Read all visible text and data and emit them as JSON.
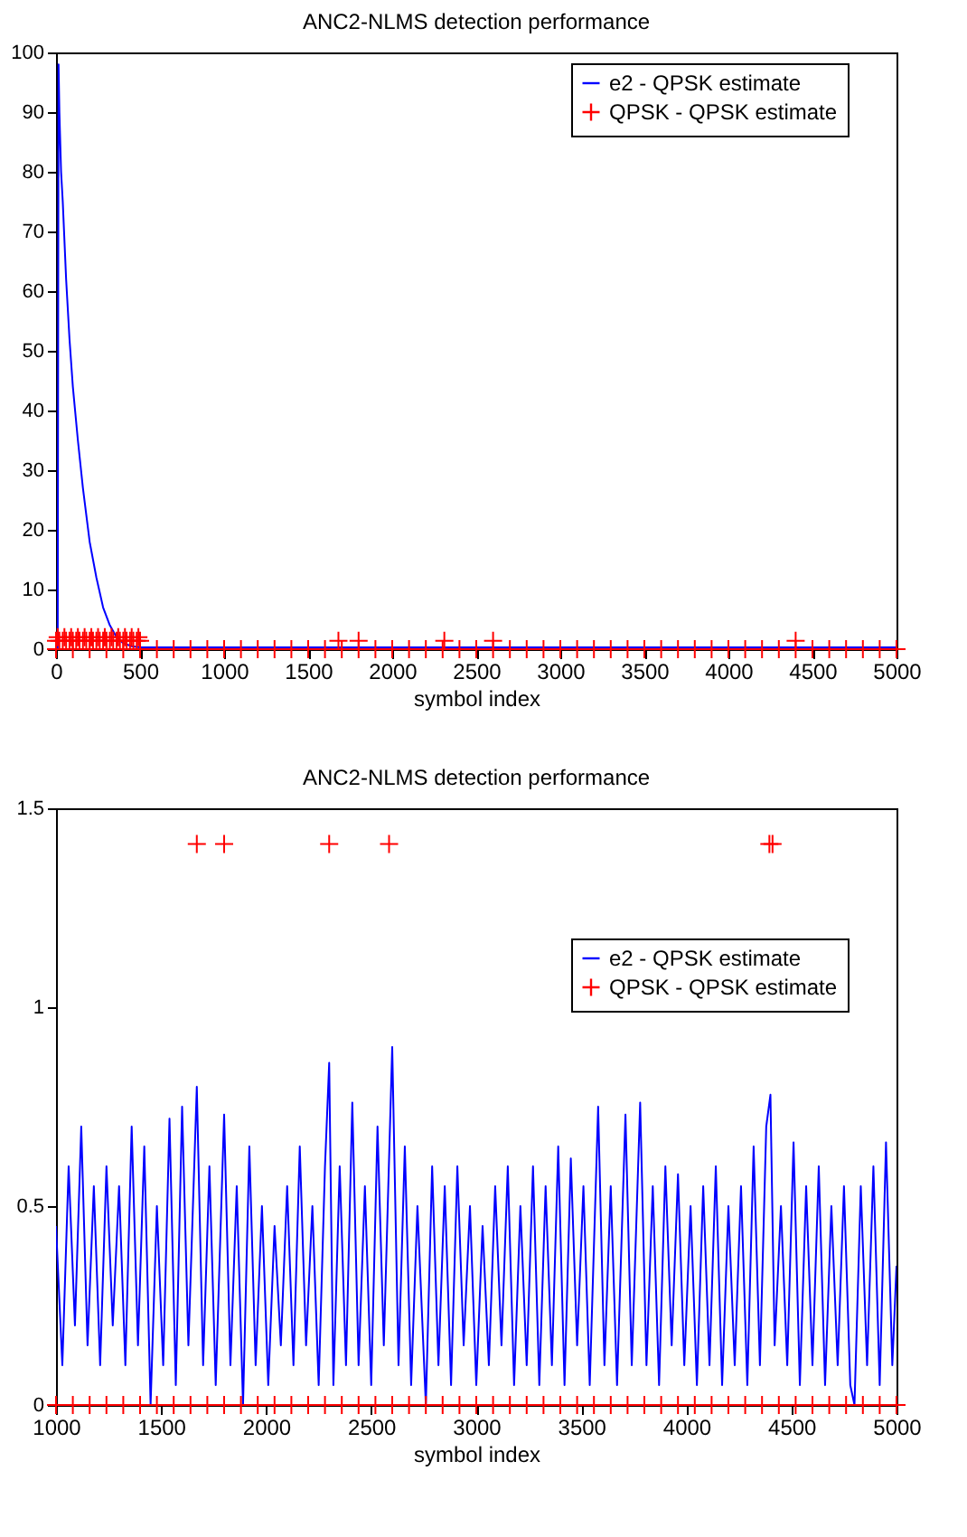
{
  "chart_data": [
    {
      "type": "line",
      "title": "ANC2-NLMS detection performance",
      "xlabel": "symbol index",
      "xlim": [
        0,
        5000
      ],
      "xticks": [
        0,
        500,
        1000,
        1500,
        2000,
        2500,
        3000,
        3500,
        4000,
        4500,
        5000
      ],
      "ylim": [
        0,
        100
      ],
      "yticks": [
        0,
        10,
        20,
        30,
        40,
        50,
        60,
        70,
        80,
        90,
        100
      ],
      "legend": "top right",
      "series": [
        {
          "name": "e2 - QPSK estimate",
          "type": "line",
          "color": "#0000ff",
          "x": [
            0,
            10,
            15,
            20,
            30,
            40,
            60,
            80,
            100,
            130,
            160,
            200,
            240,
            280,
            320,
            360,
            400,
            450,
            500,
            1000,
            5000
          ],
          "values": [
            0,
            0,
            98,
            90,
            80,
            75,
            62,
            52,
            44,
            35,
            27,
            18,
            12,
            7,
            4,
            2,
            1,
            0.5,
            0.3,
            0.3,
            0.3
          ]
        },
        {
          "name": "QPSK - QPSK estimate",
          "type": "scatter",
          "marker": "cross",
          "color": "#ff0000",
          "x": [
            0,
            20,
            40,
            60,
            80,
            100,
            120,
            140,
            160,
            180,
            200,
            220,
            240,
            260,
            280,
            300,
            320,
            340,
            360,
            380,
            400,
            420,
            440,
            460,
            480,
            500,
            10,
            50,
            90,
            130,
            170,
            210,
            250,
            290,
            330,
            370,
            410,
            450,
            490,
            1680,
            1800,
            2310,
            2600,
            4400,
            0,
            100,
            200,
            300,
            400,
            500,
            600,
            700,
            800,
            900,
            1000,
            1100,
            1200,
            1300,
            1400,
            1500,
            1600,
            1700,
            1800,
            1900,
            2000,
            2100,
            2200,
            2300,
            2400,
            2500,
            2600,
            2700,
            2800,
            2900,
            3000,
            3100,
            3200,
            3300,
            3400,
            3500,
            3600,
            3700,
            3800,
            3900,
            4000,
            4100,
            4200,
            4300,
            4400,
            4500,
            4600,
            4700,
            4800,
            4900,
            5000
          ],
          "values": [
            1.4,
            1.4,
            1.4,
            1.4,
            1.4,
            1.4,
            1.4,
            1.4,
            1.4,
            1.4,
            1.4,
            1.4,
            1.4,
            1.4,
            1.4,
            1.4,
            1.4,
            1.4,
            1.4,
            1.4,
            1.4,
            1.4,
            1.4,
            1.4,
            1.4,
            1.4,
            2,
            2,
            2,
            2,
            2,
            2,
            2,
            2,
            2,
            2,
            2,
            2,
            2,
            1.4,
            1.4,
            1.4,
            1.4,
            1.4,
            0,
            0,
            0,
            0,
            0,
            0,
            0,
            0,
            0,
            0,
            0,
            0,
            0,
            0,
            0,
            0,
            0,
            0,
            0,
            0,
            0,
            0,
            0,
            0,
            0,
            0,
            0,
            0,
            0,
            0,
            0,
            0,
            0,
            0,
            0,
            0,
            0,
            0,
            0,
            0,
            0,
            0,
            0,
            0,
            0,
            0,
            0,
            0,
            0,
            0,
            0
          ]
        }
      ]
    },
    {
      "type": "line",
      "title": "ANC2-NLMS detection performance",
      "xlabel": "symbol index",
      "xlim": [
        1000,
        5000
      ],
      "xticks": [
        1000,
        1500,
        2000,
        2500,
        3000,
        3500,
        4000,
        4500,
        5000
      ],
      "ylim": [
        0,
        1.5
      ],
      "yticks": [
        0,
        0.5,
        1,
        1.5
      ],
      "legend": "top right",
      "series": [
        {
          "name": "e2 - QPSK estimate",
          "type": "line",
          "color": "#0000ff",
          "x": [
            1000,
            1030,
            1060,
            1090,
            1120,
            1150,
            1180,
            1210,
            1240,
            1270,
            1300,
            1330,
            1360,
            1390,
            1420,
            1450,
            1480,
            1510,
            1540,
            1570,
            1600,
            1630,
            1670,
            1700,
            1730,
            1760,
            1800,
            1830,
            1860,
            1890,
            1920,
            1950,
            1980,
            2010,
            2040,
            2070,
            2100,
            2130,
            2160,
            2190,
            2220,
            2250,
            2280,
            2300,
            2320,
            2350,
            2380,
            2410,
            2440,
            2470,
            2500,
            2530,
            2560,
            2600,
            2630,
            2660,
            2690,
            2720,
            2760,
            2790,
            2820,
            2850,
            2880,
            2910,
            2940,
            2970,
            3000,
            3030,
            3060,
            3090,
            3120,
            3150,
            3180,
            3210,
            3240,
            3270,
            3300,
            3330,
            3360,
            3390,
            3420,
            3450,
            3480,
            3510,
            3540,
            3580,
            3610,
            3640,
            3670,
            3710,
            3740,
            3780,
            3810,
            3840,
            3870,
            3900,
            3930,
            3960,
            3990,
            4020,
            4050,
            4080,
            4110,
            4140,
            4170,
            4200,
            4230,
            4260,
            4290,
            4320,
            4350,
            4380,
            4400,
            4420,
            4450,
            4480,
            4510,
            4540,
            4570,
            4600,
            4630,
            4660,
            4690,
            4720,
            4750,
            4780,
            4800,
            4830,
            4860,
            4890,
            4920,
            4950,
            4980,
            5000
          ],
          "values": [
            0.45,
            0.1,
            0.6,
            0.2,
            0.7,
            0.15,
            0.55,
            0.1,
            0.6,
            0.2,
            0.55,
            0.1,
            0.7,
            0.15,
            0.65,
            0,
            0.5,
            0.1,
            0.72,
            0.05,
            0.75,
            0.15,
            0.8,
            0.1,
            0.6,
            0.05,
            0.73,
            0.1,
            0.55,
            0,
            0.65,
            0.1,
            0.5,
            0.05,
            0.45,
            0.15,
            0.55,
            0.1,
            0.65,
            0.15,
            0.5,
            0.05,
            0.6,
            0.86,
            0.05,
            0.6,
            0.1,
            0.76,
            0.1,
            0.55,
            0.05,
            0.7,
            0.15,
            0.9,
            0.1,
            0.65,
            0.05,
            0.5,
            0,
            0.6,
            0.1,
            0.55,
            0.05,
            0.6,
            0.15,
            0.5,
            0.05,
            0.45,
            0.1,
            0.55,
            0.15,
            0.6,
            0.05,
            0.5,
            0.1,
            0.6,
            0.05,
            0.55,
            0.1,
            0.65,
            0.05,
            0.62,
            0.15,
            0.55,
            0.05,
            0.75,
            0.1,
            0.55,
            0.05,
            0.73,
            0.1,
            0.76,
            0.1,
            0.55,
            0.05,
            0.6,
            0.15,
            0.58,
            0.1,
            0.5,
            0.05,
            0.55,
            0.1,
            0.6,
            0.05,
            0.5,
            0.1,
            0.55,
            0.05,
            0.65,
            0.1,
            0.7,
            0.78,
            0.15,
            0.5,
            0.1,
            0.66,
            0.05,
            0.55,
            0.1,
            0.6,
            0.05,
            0.5,
            0.1,
            0.55,
            0.05,
            0,
            0.55,
            0.1,
            0.6,
            0.05,
            0.66,
            0.1,
            0.35
          ]
        },
        {
          "name": "QPSK - QPSK estimate",
          "type": "scatter",
          "marker": "cross",
          "color": "#ff0000",
          "x": [
            1670,
            1800,
            2300,
            2585,
            4395,
            4410,
            1000,
            1080,
            1160,
            1240,
            1320,
            1400,
            1480,
            1560,
            1640,
            1720,
            1800,
            1880,
            1960,
            2040,
            2120,
            2200,
            2280,
            2360,
            2440,
            2520,
            2600,
            2680,
            2760,
            2840,
            2920,
            3000,
            3080,
            3160,
            3240,
            3320,
            3400,
            3480,
            3560,
            3640,
            3720,
            3800,
            3880,
            3960,
            4040,
            4120,
            4200,
            4280,
            4360,
            4440,
            4520,
            4600,
            4680,
            4760,
            4840,
            4920,
            5000
          ],
          "values": [
            1.41,
            1.41,
            1.41,
            1.41,
            1.41,
            1.41,
            0,
            0,
            0,
            0,
            0,
            0,
            0,
            0,
            0,
            0,
            0,
            0,
            0,
            0,
            0,
            0,
            0,
            0,
            0,
            0,
            0,
            0,
            0,
            0,
            0,
            0,
            0,
            0,
            0,
            0,
            0,
            0,
            0,
            0,
            0,
            0,
            0,
            0,
            0,
            0,
            0,
            0,
            0,
            0,
            0,
            0,
            0,
            0,
            0,
            0,
            0
          ]
        }
      ]
    }
  ]
}
